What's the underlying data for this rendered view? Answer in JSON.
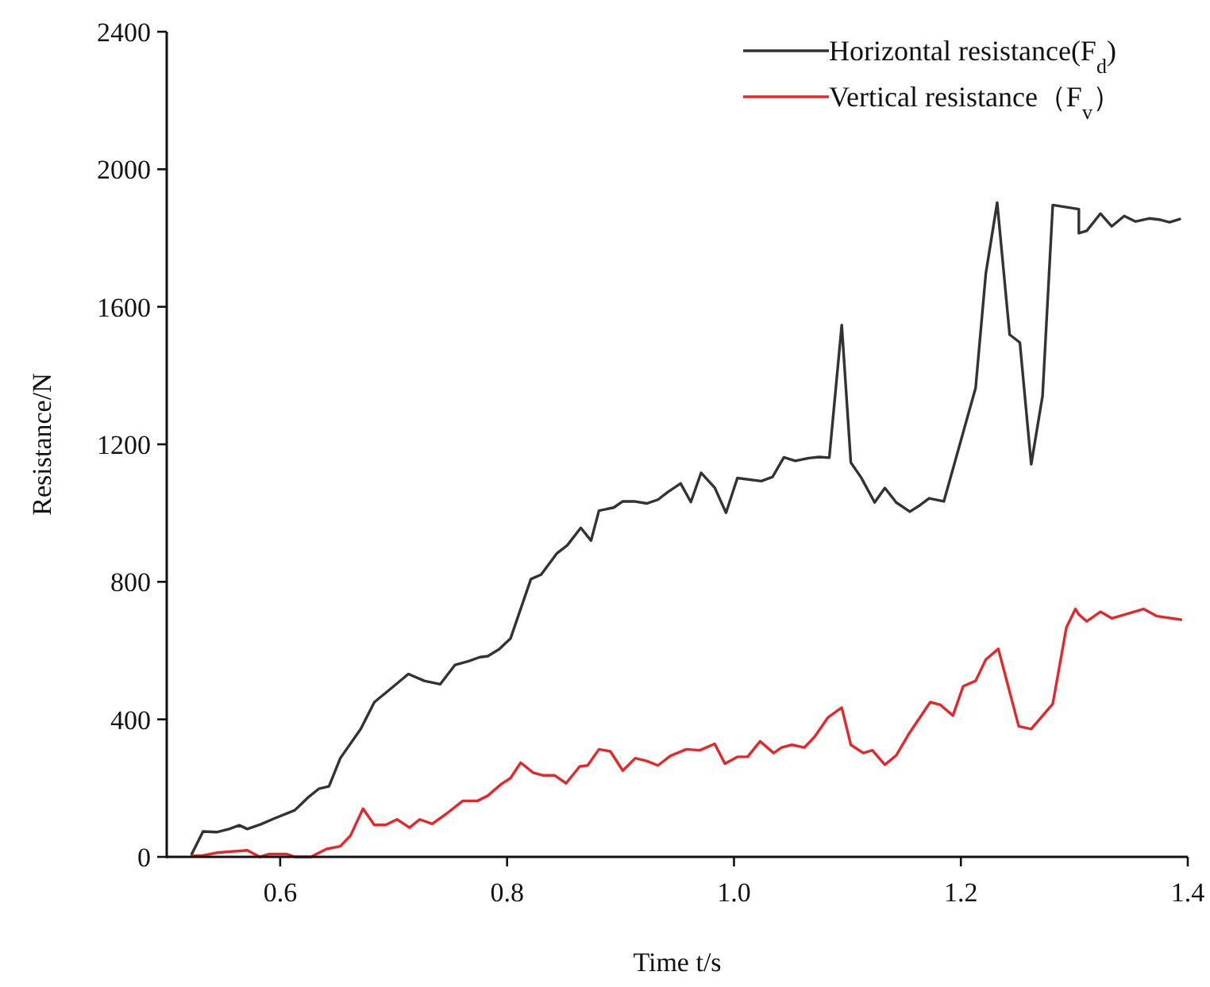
{
  "chart_data": {
    "type": "line",
    "xlabel": "Time t/s",
    "ylabel": "Resistance/N",
    "xlim": [
      0.5,
      1.4
    ],
    "ylim": [
      0,
      2400
    ],
    "xticks": [
      0.6,
      0.8,
      {
        "value": 1.0,
        "label": "1.0"
      },
      1.2,
      1.4
    ],
    "yticks": [
      0,
      400,
      800,
      1200,
      1600,
      2000,
      2400
    ],
    "grid": false,
    "legend": "top right",
    "marker": "none",
    "line_style": "solid",
    "series": [
      {
        "name": "Horizontal resistance(F$_{d}$)",
        "color": "#333333",
        "x": [
          0.522,
          0.532,
          0.544,
          0.555,
          0.564,
          0.571,
          0.583,
          0.595,
          0.613,
          0.625,
          0.634,
          0.643,
          0.653,
          0.671,
          0.683,
          0.7,
          0.713,
          0.727,
          0.741,
          0.754,
          0.766,
          0.776,
          0.783,
          0.793,
          0.803,
          0.821,
          0.83,
          0.844,
          0.853,
          0.865,
          0.874,
          0.881,
          0.894,
          0.902,
          0.912,
          0.923,
          0.933,
          0.942,
          0.953,
          0.962,
          0.971,
          0.983,
          0.993,
          1.003,
          1.024,
          1.034,
          1.044,
          1.054,
          1.066,
          1.075,
          1.084,
          1.095,
          1.103,
          1.112,
          1.124,
          1.133,
          1.143,
          1.155,
          1.164,
          1.172,
          1.185,
          1.213,
          1.222,
          1.232,
          1.243,
          1.252,
          1.262,
          1.272,
          1.281,
          1.304,
          1.304,
          1.311,
          1.323,
          1.333,
          1.344,
          1.354,
          1.366,
          1.376,
          1.384,
          1.393
        ],
        "values": [
          8,
          74,
          72,
          81,
          92,
          81,
          95,
          112,
          136,
          174,
          198,
          205,
          287,
          372,
          450,
          496,
          532,
          512,
          502,
          558,
          569,
          581,
          584,
          604,
          635,
          808,
          821,
          883,
          906,
          957,
          920,
          1007,
          1016,
          1034,
          1034,
          1028,
          1039,
          1062,
          1086,
          1032,
          1117,
          1074,
          1001,
          1102,
          1093,
          1105,
          1162,
          1152,
          1160,
          1163,
          1161,
          1547,
          1147,
          1104,
          1031,
          1073,
          1031,
          1004,
          1023,
          1043,
          1034,
          1364,
          1697,
          1903,
          1519,
          1496,
          1142,
          1341,
          1896,
          1884,
          1814,
          1821,
          1871,
          1834,
          1864,
          1848,
          1857,
          1853,
          1846,
          1855
        ]
      },
      {
        "name": "Vertical resistance（F$_{v}$）",
        "color": "#e8262a",
        "x": [
          0.522,
          0.532,
          0.544,
          0.555,
          0.571,
          0.582,
          0.59,
          0.606,
          0.613,
          0.627,
          0.641,
          0.653,
          0.662,
          0.673,
          0.683,
          0.693,
          0.703,
          0.714,
          0.723,
          0.734,
          0.746,
          0.761,
          0.774,
          0.783,
          0.795,
          0.803,
          0.812,
          0.823,
          0.832,
          0.842,
          0.852,
          0.864,
          0.871,
          0.881,
          0.891,
          0.902,
          0.913,
          0.923,
          0.933,
          0.944,
          0.958,
          0.97,
          0.983,
          0.992,
          1.003,
          1.012,
          1.023,
          1.035,
          1.042,
          1.051,
          1.062,
          1.071,
          1.083,
          1.095,
          1.103,
          1.114,
          1.122,
          1.133,
          1.143,
          1.154,
          1.173,
          1.182,
          1.193,
          1.202,
          1.213,
          1.222,
          1.233,
          1.251,
          1.262,
          1.281,
          1.293,
          1.301,
          1.304,
          1.311,
          1.323,
          1.333,
          1.361,
          1.373,
          1.394
        ],
        "values": [
          3,
          4,
          12,
          15,
          19,
          0,
          8,
          8,
          0,
          0,
          23,
          31,
          62,
          140,
          93,
          93,
          109,
          85,
          109,
          96,
          124,
          163,
          163,
          178,
          212,
          229,
          274,
          245,
          237,
          237,
          214,
          263,
          266,
          313,
          307,
          251,
          287,
          279,
          266,
          294,
          313,
          310,
          329,
          271,
          291,
          291,
          336,
          302,
          318,
          326,
          318,
          349,
          406,
          434,
          326,
          302,
          310,
          268,
          295,
          357,
          450,
          442,
          411,
          496,
          512,
          574,
          605,
          380,
          372,
          445,
          667,
          721,
          705,
          685,
          713,
          694,
          721,
          700,
          690
        ]
      }
    ]
  }
}
